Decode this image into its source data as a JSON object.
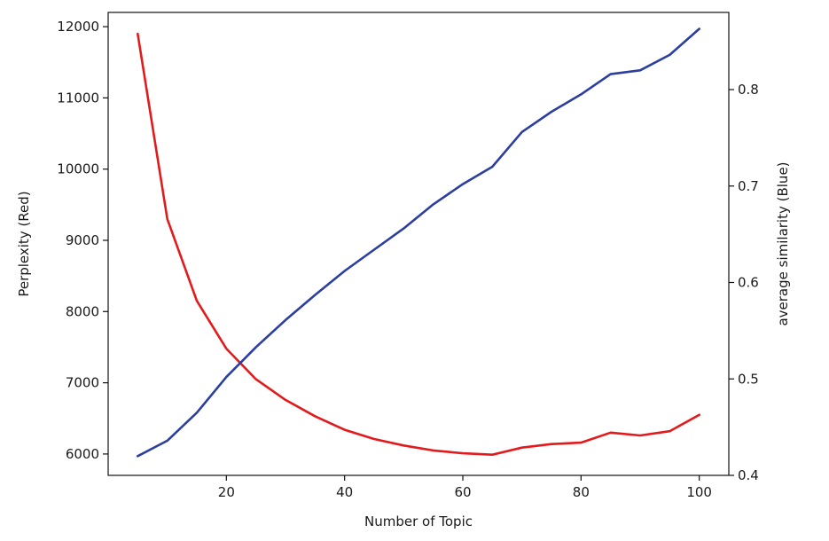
{
  "chart_data": {
    "type": "line",
    "title": "",
    "xlabel": "Number of Topic",
    "ylabel_left": "Perplexity (Red)",
    "ylabel_right": "average similarity (Blue)",
    "x": [
      5,
      10,
      15,
      20,
      25,
      30,
      35,
      40,
      45,
      50,
      55,
      60,
      65,
      70,
      75,
      80,
      85,
      90,
      95,
      100
    ],
    "xlim": [
      0,
      105
    ],
    "ylim_left": [
      5700,
      12200
    ],
    "ylim_right": [
      0.4,
      0.88
    ],
    "x_ticks": [
      20,
      40,
      60,
      80,
      100
    ],
    "y_ticks_left": [
      6000,
      7000,
      8000,
      9000,
      10000,
      11000,
      12000
    ],
    "y_ticks_right": [
      0.4,
      0.5,
      0.6,
      0.7,
      0.8
    ],
    "series": [
      {
        "axis": "left",
        "color": "#e31a1c",
        "values": [
          11900,
          9300,
          8150,
          7480,
          7050,
          6760,
          6530,
          6340,
          6210,
          6120,
          6050,
          6010,
          5990,
          6090,
          6140,
          6160,
          6300,
          6260,
          6320,
          6550
        ]
      },
      {
        "axis": "right",
        "color": "#2c3e9e",
        "values": [
          0.42,
          0.436,
          0.465,
          0.502,
          0.533,
          0.561,
          0.587,
          0.612,
          0.634,
          0.656,
          0.681,
          0.702,
          0.72,
          0.756,
          0.777,
          0.795,
          0.816,
          0.82,
          0.836,
          0.863
        ]
      }
    ],
    "grid": false,
    "legend": "none"
  }
}
